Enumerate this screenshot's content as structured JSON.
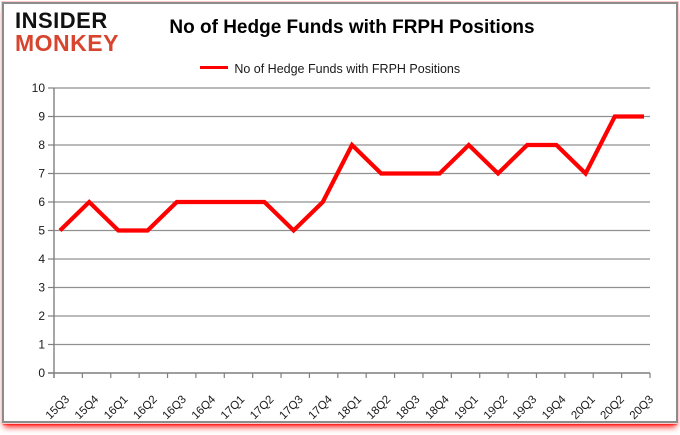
{
  "header": {
    "logo_line1": "INSIDER",
    "logo_line2": "MONKEY",
    "title": "No of Hedge Funds with FRPH Positions"
  },
  "legend": {
    "label": "No of Hedge Funds with FRPH Positions"
  },
  "chart_data": {
    "type": "line",
    "title": "No of Hedge Funds with FRPH Positions",
    "categories": [
      "15Q3",
      "15Q4",
      "16Q1",
      "16Q2",
      "16Q3",
      "16Q4",
      "17Q1",
      "17Q2",
      "17Q3",
      "17Q4",
      "18Q1",
      "18Q2",
      "18Q3",
      "18Q4",
      "19Q1",
      "19Q2",
      "19Q3",
      "19Q4",
      "20Q1",
      "20Q2",
      "20Q3"
    ],
    "series": [
      {
        "name": "No of Hedge Funds with FRPH Positions",
        "values": [
          5,
          6,
          5,
          5,
          6,
          6,
          6,
          6,
          5,
          6,
          8,
          7,
          7,
          7,
          8,
          7,
          8,
          8,
          7,
          9,
          9
        ]
      }
    ],
    "xlabel": "",
    "ylabel": "",
    "ylim": [
      0,
      10
    ],
    "yticks": [
      0,
      1,
      2,
      3,
      4,
      5,
      6,
      7,
      8,
      9,
      10
    ],
    "grid": true,
    "legend_position": "top-center",
    "colors": {
      "line": "#ff0000",
      "grid": "#909090",
      "axis": "#7f7f7f",
      "tick_text": "#1a1a1a",
      "title_text": "#000000",
      "logo_black": "#111111",
      "logo_red": "#d8452f",
      "card_border": "#8c8c8c",
      "card_outline_pink": "#ffc9c9",
      "bottom_glow": "#ff0000"
    }
  }
}
